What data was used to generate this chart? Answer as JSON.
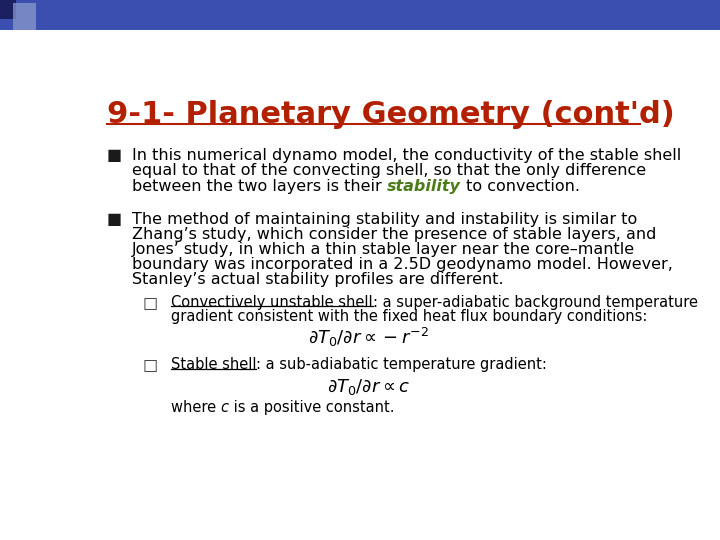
{
  "title": "9-1- Planetary Geometry (cont'd)",
  "title_color": "#B22000",
  "title_fontsize": 22,
  "bg_color": "#FFFFFF",
  "bullet1_line1": "In this numerical dynamo model, the conductivity of the stable shell",
  "bullet1_line2": "equal to that of the convecting shell, so that the only difference",
  "bullet1_line3_pre": "between the two layers is their ",
  "bullet1_line3_italic": "stability",
  "bullet1_line3_italic_color": "#4B7B1A",
  "bullet1_line3_post": " to convection.",
  "bullet2_lines": [
    "The method of maintaining stability and instability is similar to",
    "Zhang’s study, which consider the presence of stable layers, and",
    "Jones’ study, in which a thin stable layer near the core–mantle",
    "boundary was incorporated in a 2.5D geodynamo model. However,",
    "Stanley’s actual stability profiles are different."
  ],
  "sub1_label": "Convectively unstable shell",
  "sub1_text": ": a super-adiabatic background temperature",
  "sub1_line2": "gradient consistent with the fixed heat flux boundary conditions:",
  "sub1_formula": "$\\partial T_0/\\partial r \\propto -r^{-2}$",
  "sub2_label": "Stable shell",
  "sub2_text": ": a sub-adiabatic temperature gradient:",
  "sub2_formula": "$\\partial T_0/\\partial r \\propto c$",
  "sub2_end_pre": "where ",
  "sub2_end_italic": "c",
  "sub2_end_post": " is a positive constant.",
  "font_size_body": 11.5,
  "font_size_sub": 10.5,
  "font_size_formula": 13,
  "text_color": "#000000",
  "header_color1": "#1A2060",
  "header_color2": "#3A4FAF",
  "header_color3": "#8899CC"
}
